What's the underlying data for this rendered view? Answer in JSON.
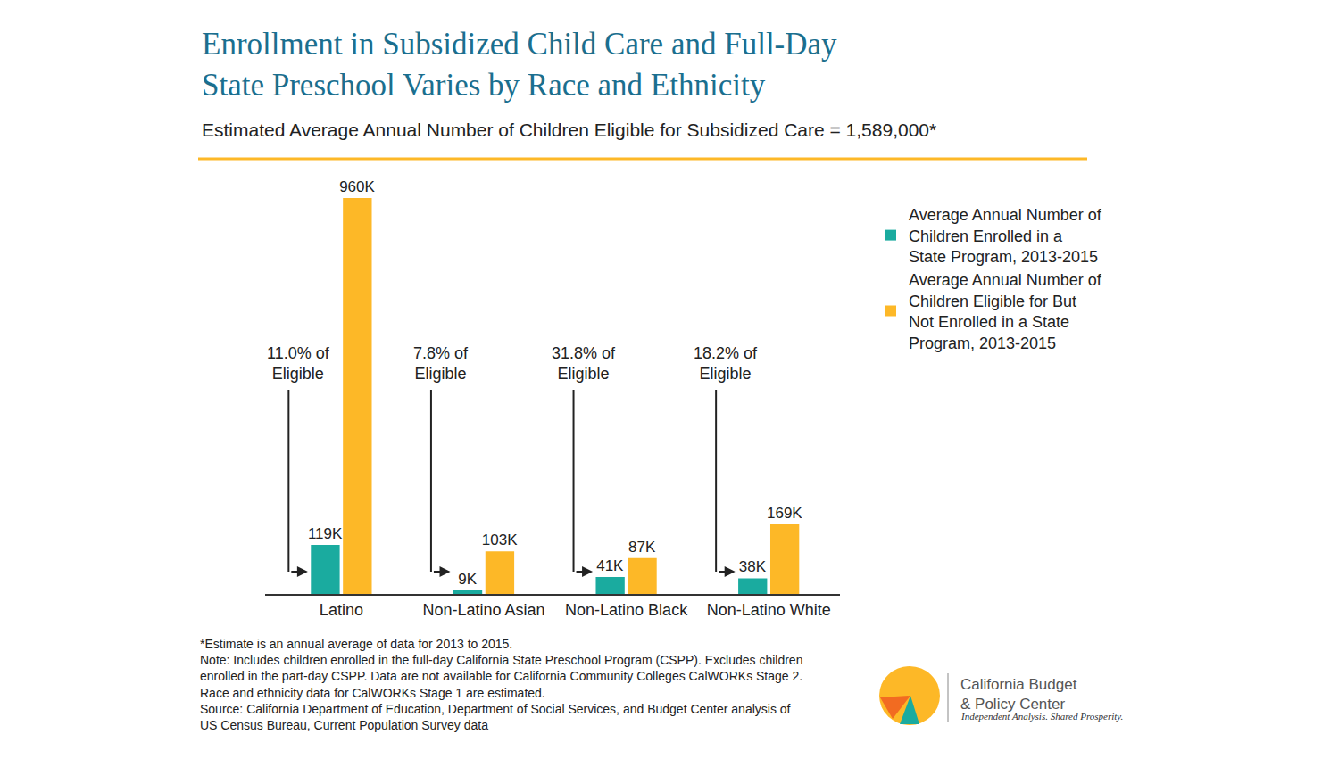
{
  "chart_data": {
    "type": "bar",
    "title": "Enrollment in Subsidized Child Care and Full-Day State Preschool Varies by Race and Ethnicity",
    "subtitle": "Estimated Average Annual Number of Children Eligible for Subsidized Care = 1,589,000*",
    "categories": [
      "Latino",
      "Non-Latino Asian",
      "Non-Latino Black",
      "Non-Latino White"
    ],
    "series": [
      {
        "name": "Average Annual Number of Children Enrolled in a State Program, 2013-2015",
        "color": "#1aab9f",
        "values": [
          119,
          9,
          41,
          38
        ],
        "value_labels": [
          "119K",
          "9K",
          "41K",
          "38K"
        ]
      },
      {
        "name": "Average Annual Number of Children Eligible for But Not Enrolled in a State Program, 2013-2015",
        "color": "#fdb827",
        "values": [
          960,
          103,
          87,
          169
        ],
        "value_labels": [
          "960K",
          "103K",
          "87K",
          "169K"
        ]
      }
    ],
    "annotations": [
      {
        "category": "Latino",
        "text": "11.0% of Eligible"
      },
      {
        "category": "Non-Latino Asian",
        "text": "7.8% of Eligible"
      },
      {
        "category": "Non-Latino Black",
        "text": "31.8% of Eligible"
      },
      {
        "category": "Non-Latino White",
        "text": "18.2% of Eligible"
      }
    ],
    "ylim": [
      0,
      960
    ],
    "grid": false,
    "tick_labels": "x",
    "data_labels": true,
    "legend": "right"
  },
  "footer": {
    "notes": [
      "*Estimate is an annual average of data for 2013 to 2015.",
      "Note: Includes children enrolled in the full-day California State Preschool Program (CSPP). Excludes children",
      "enrolled in the part-day CSPP. Data are not available for California Community Colleges CalWORKs Stage 2.",
      "Race and ethnicity data for CalWORKs Stage 1 are estimated.",
      "Source: California Department of Education, Department of Social Services, and Budget Center analysis of",
      "US Census Bureau, Current Population Survey data"
    ],
    "logo": [
      "California Budget",
      "& Policy Center"
    ],
    "tagline": "Independent Analysis. Shared Prosperity."
  }
}
